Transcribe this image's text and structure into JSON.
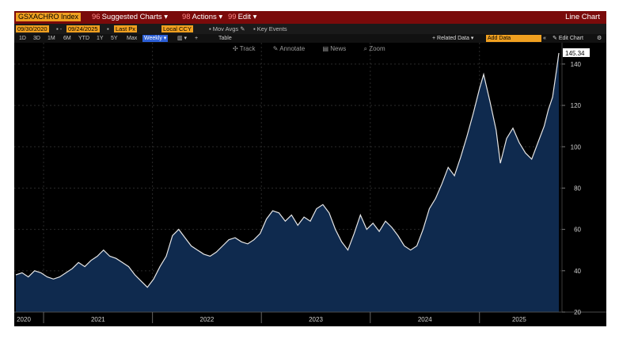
{
  "titlebar": {
    "ticker": "GSXACHRO Index",
    "menu_suggested": "Suggested Charts",
    "menu_actions": "Actions",
    "menu_edit": "Edit",
    "chart_type": "Line Chart"
  },
  "params": {
    "start_date": "09/30/2020",
    "end_date": "09/24/2025",
    "field": "Last Px",
    "currency": "Local CCY",
    "mov_avgs": "Mov Avgs",
    "key_events": "Key Events"
  },
  "periods": {
    "items": [
      "1D",
      "3D",
      "1M",
      "6M",
      "YTD",
      "1Y",
      "5Y",
      "Max"
    ],
    "frequency": "Weekly",
    "table": "Table",
    "related_data": "+ Related Data",
    "add_data": "Add Data",
    "edit_chart": "Edit Chart"
  },
  "toolbar": {
    "track": "Track",
    "annotate": "Annotate",
    "news": "News",
    "zoom": "Zoom"
  },
  "colors": {
    "background": "#000000",
    "line": "#e6e6e6",
    "fill": "#0f2a4e",
    "accent": "#f0a020",
    "titlebar": "#7a0a0a"
  },
  "chart_data": {
    "type": "area",
    "title": "",
    "xlabel": "",
    "ylabel": "",
    "ylim": [
      20,
      148
    ],
    "xlim": [
      "2020-09-30",
      "2025-09-24"
    ],
    "y_ticks": [
      20,
      40,
      60,
      80,
      100,
      120,
      140
    ],
    "x_tick_labels": [
      "2020",
      "2021",
      "2022",
      "2023",
      "2024",
      "2025"
    ],
    "last_value_label": "145.34",
    "grid": true,
    "legend": "none",
    "series": [
      {
        "values": [
          [
            "2020-09-30",
            38
          ],
          [
            "2020-10-21",
            39
          ],
          [
            "2020-11-11",
            37
          ],
          [
            "2020-12-02",
            40
          ],
          [
            "2020-12-23",
            39
          ],
          [
            "2021-01-13",
            37
          ],
          [
            "2021-02-03",
            36
          ],
          [
            "2021-02-24",
            37
          ],
          [
            "2021-03-17",
            39
          ],
          [
            "2021-04-07",
            41
          ],
          [
            "2021-04-28",
            44
          ],
          [
            "2021-05-19",
            42
          ],
          [
            "2021-06-09",
            45
          ],
          [
            "2021-06-30",
            47
          ],
          [
            "2021-07-21",
            50
          ],
          [
            "2021-08-11",
            47
          ],
          [
            "2021-09-01",
            46
          ],
          [
            "2021-09-22",
            44
          ],
          [
            "2021-10-13",
            42
          ],
          [
            "2021-11-03",
            38
          ],
          [
            "2021-11-24",
            35
          ],
          [
            "2021-12-15",
            32
          ],
          [
            "2022-01-05",
            36
          ],
          [
            "2022-01-26",
            42
          ],
          [
            "2022-02-16",
            47
          ],
          [
            "2022-03-09",
            57
          ],
          [
            "2022-03-30",
            60
          ],
          [
            "2022-04-20",
            56
          ],
          [
            "2022-05-11",
            52
          ],
          [
            "2022-06-01",
            50
          ],
          [
            "2022-06-22",
            48
          ],
          [
            "2022-07-13",
            47
          ],
          [
            "2022-08-03",
            49
          ],
          [
            "2022-08-24",
            52
          ],
          [
            "2022-09-14",
            55
          ],
          [
            "2022-10-05",
            56
          ],
          [
            "2022-10-26",
            54
          ],
          [
            "2022-11-16",
            53
          ],
          [
            "2022-12-07",
            55
          ],
          [
            "2022-12-28",
            58
          ],
          [
            "2023-01-18",
            65
          ],
          [
            "2023-02-08",
            69
          ],
          [
            "2023-03-01",
            68
          ],
          [
            "2023-03-22",
            64
          ],
          [
            "2023-04-12",
            67
          ],
          [
            "2023-05-03",
            62
          ],
          [
            "2023-05-24",
            66
          ],
          [
            "2023-06-14",
            64
          ],
          [
            "2023-07-05",
            70
          ],
          [
            "2023-07-26",
            72
          ],
          [
            "2023-08-16",
            68
          ],
          [
            "2023-09-06",
            60
          ],
          [
            "2023-09-27",
            54
          ],
          [
            "2023-10-18",
            50
          ],
          [
            "2023-11-08",
            58
          ],
          [
            "2023-11-29",
            67
          ],
          [
            "2023-12-20",
            60
          ],
          [
            "2024-01-10",
            63
          ],
          [
            "2024-01-31",
            59
          ],
          [
            "2024-02-21",
            64
          ],
          [
            "2024-03-13",
            61
          ],
          [
            "2024-04-03",
            57
          ],
          [
            "2024-04-24",
            52
          ],
          [
            "2024-05-15",
            50
          ],
          [
            "2024-06-05",
            52
          ],
          [
            "2024-06-26",
            60
          ],
          [
            "2024-07-17",
            70
          ],
          [
            "2024-08-07",
            75
          ],
          [
            "2024-08-28",
            82
          ],
          [
            "2024-09-18",
            90
          ],
          [
            "2024-10-09",
            86
          ],
          [
            "2024-10-30",
            95
          ],
          [
            "2024-11-20",
            105
          ],
          [
            "2024-12-11",
            116
          ],
          [
            "2025-01-01",
            128
          ],
          [
            "2025-01-15",
            135
          ],
          [
            "2025-02-05",
            122
          ],
          [
            "2025-02-26",
            108
          ],
          [
            "2025-03-12",
            92
          ],
          [
            "2025-04-02",
            104
          ],
          [
            "2025-04-23",
            109
          ],
          [
            "2025-05-14",
            102
          ],
          [
            "2025-06-04",
            97
          ],
          [
            "2025-06-25",
            94
          ],
          [
            "2025-07-16",
            102
          ],
          [
            "2025-08-06",
            110
          ],
          [
            "2025-08-20",
            118
          ],
          [
            "2025-09-03",
            124
          ],
          [
            "2025-09-17",
            138
          ],
          [
            "2025-09-24",
            145.34
          ]
        ]
      }
    ]
  }
}
